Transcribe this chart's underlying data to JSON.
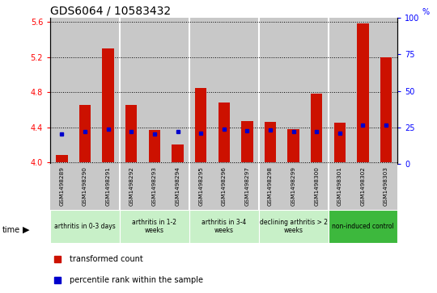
{
  "title": "GDS6064 / 10583432",
  "samples": [
    "GSM1498289",
    "GSM1498290",
    "GSM1498291",
    "GSM1498292",
    "GSM1498293",
    "GSM1498294",
    "GSM1498295",
    "GSM1498296",
    "GSM1498297",
    "GSM1498298",
    "GSM1498299",
    "GSM1498300",
    "GSM1498301",
    "GSM1498302",
    "GSM1498303"
  ],
  "red_values": [
    4.08,
    4.65,
    5.3,
    4.65,
    4.37,
    4.2,
    4.85,
    4.68,
    4.47,
    4.46,
    4.38,
    4.78,
    4.45,
    5.58,
    5.2
  ],
  "blue_values": [
    4.32,
    4.35,
    4.38,
    4.35,
    4.32,
    4.35,
    4.33,
    4.38,
    4.36,
    4.37,
    4.35,
    4.35,
    4.33,
    4.42,
    4.42
  ],
  "groups": [
    {
      "label": "arthritis in 0-3 days",
      "color": "#c8f0c8",
      "start": 0,
      "end": 3
    },
    {
      "label": "arthritis in 1-2\nweeks",
      "color": "#c8f0c8",
      "start": 3,
      "end": 6
    },
    {
      "label": "arthritis in 3-4\nweeks",
      "color": "#c8f0c8",
      "start": 6,
      "end": 9
    },
    {
      "label": "declining arthritis > 2\nweeks",
      "color": "#c8f0c8",
      "start": 9,
      "end": 12
    },
    {
      "label": "non-induced control",
      "color": "#3db83d",
      "start": 12,
      "end": 15
    }
  ],
  "ylim_left": [
    3.98,
    5.65
  ],
  "ylim_right": [
    0,
    100
  ],
  "yticks_left": [
    4.0,
    4.4,
    4.8,
    5.2,
    5.6
  ],
  "yticks_right": [
    0,
    25,
    50,
    75,
    100
  ],
  "bar_color": "#cc1100",
  "blue_color": "#0000cc",
  "bg_color": "#c8c8c8",
  "title_fontsize": 10,
  "tick_fontsize": 7,
  "bar_width": 0.5
}
